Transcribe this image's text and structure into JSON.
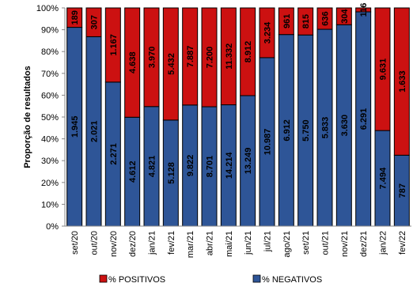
{
  "chart_data": {
    "type": "bar",
    "stacked": true,
    "orientation": "vertical",
    "ylabel": "Proporção de resultados",
    "xlabel": "",
    "ylim": [
      0,
      100
    ],
    "yticks": [
      "0%",
      "10%",
      "20%",
      "30%",
      "40%",
      "50%",
      "60%",
      "70%",
      "80%",
      "90%",
      "100%"
    ],
    "grid": false,
    "legend_position": "bottom",
    "categories": [
      "set/20",
      "out/20",
      "nov/20",
      "dez/20",
      "jan/21",
      "fev/21",
      "mar/21",
      "abr/21",
      "mai/21",
      "jun/21",
      "jul/21",
      "ago/21",
      "set/21",
      "out/21",
      "nov/21",
      "dez/21",
      "jan/22",
      "fev/22"
    ],
    "series": [
      {
        "name": "% NEGATIVOS",
        "color": "#2e5597",
        "percent": [
          91.1,
          86.8,
          66.0,
          49.9,
          54.8,
          48.6,
          55.5,
          54.7,
          55.6,
          59.8,
          77.2,
          87.8,
          87.6,
          90.2,
          92.3,
          98.2,
          43.8,
          32.5
        ],
        "labels": [
          "1.945",
          "2.021",
          "2.271",
          "4.612",
          "4.821",
          "5.128",
          "9.822",
          "8.701",
          "14.214",
          "13.249",
          "10.987",
          "6.912",
          "5.750",
          "5.833",
          "3.630",
          "6.291",
          "7.494",
          "787"
        ]
      },
      {
        "name": "% POSITIVOS",
        "color": "#cc1111",
        "percent": [
          8.9,
          13.2,
          34.0,
          50.1,
          45.2,
          51.4,
          44.5,
          45.3,
          44.4,
          40.2,
          22.8,
          12.2,
          12.4,
          9.8,
          7.7,
          1.8,
          56.2,
          67.5
        ],
        "labels": [
          "189",
          "307",
          "1.167",
          "4.638",
          "3.970",
          "5.432",
          "7.887",
          "7.200",
          "11.332",
          "8.912",
          "3.234",
          "961",
          "815",
          "636",
          "304",
          "116",
          "9.631",
          "1.633"
        ]
      }
    ]
  },
  "legend": {
    "items": [
      {
        "label": "% POSITIVOS",
        "color": "#cc1111"
      },
      {
        "label": "% NEGATIVOS",
        "color": "#2e5597"
      }
    ]
  }
}
